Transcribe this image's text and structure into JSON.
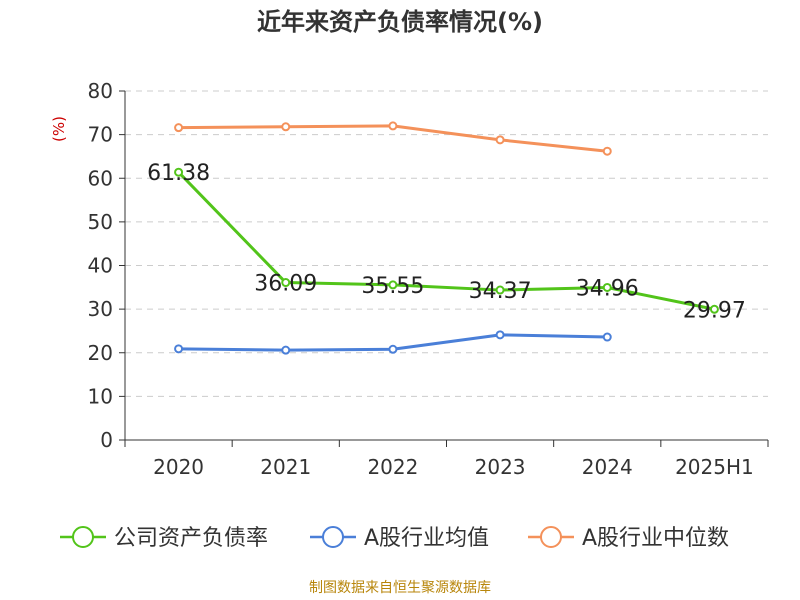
{
  "chart_data": {
    "type": "line",
    "title": "近年来资产负债率情况(%)",
    "ylabel": "(%)",
    "xlabel": "",
    "categories": [
      "2020",
      "2021",
      "2022",
      "2023",
      "2024",
      "2025H1"
    ],
    "ylim": [
      0,
      80
    ],
    "yticks": [
      0,
      10,
      20,
      30,
      40,
      50,
      60,
      70,
      80
    ],
    "grid": true,
    "legend_position": "bottom",
    "series": [
      {
        "name": "公司资产负债率",
        "color": "#52c41a",
        "values": [
          61.38,
          36.09,
          35.55,
          34.37,
          34.96,
          29.97
        ],
        "data_labels": [
          "61.38",
          "36.09",
          "35.55",
          "34.37",
          "34.96",
          "29.97"
        ]
      },
      {
        "name": "A股行业均值",
        "color": "#4a7fd8",
        "values": [
          20.9,
          20.6,
          20.8,
          24.1,
          23.6,
          null
        ]
      },
      {
        "name": "A股行业中位数",
        "color": "#f4915a",
        "values": [
          71.6,
          71.8,
          72.0,
          68.8,
          66.2,
          null
        ]
      }
    ]
  },
  "footer": {
    "source": "制图数据来自恒生聚源数据库"
  }
}
